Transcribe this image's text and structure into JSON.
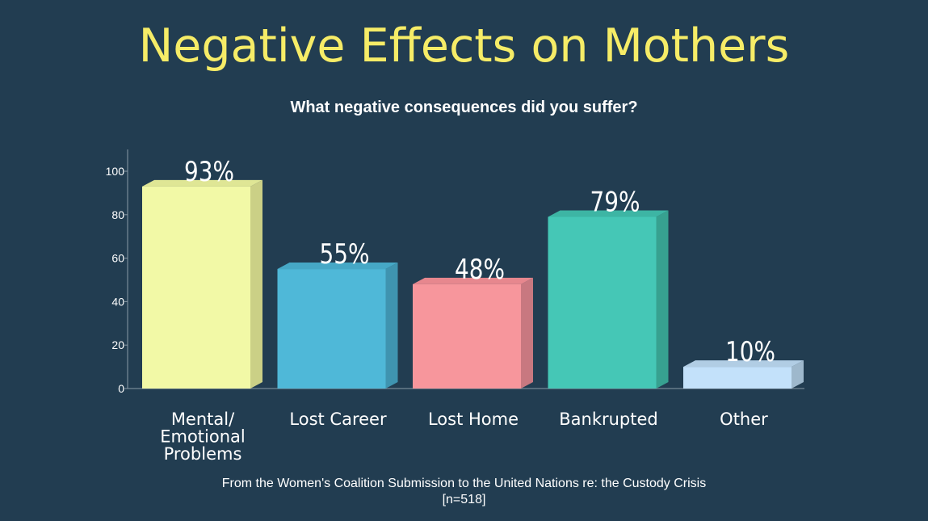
{
  "title": "Negative Effects on Mothers",
  "subtitle": "What negative consequences did you suffer?",
  "source": {
    "line1": "From the Women's Coalition Submission to the United Nations re: the Custody Crisis",
    "line2": "[n=518]"
  },
  "chart_data": {
    "type": "bar",
    "categories": [
      [
        "Mental/",
        "Emotional",
        "Problems"
      ],
      [
        "Lost Career"
      ],
      [
        "Lost Home"
      ],
      [
        "Bankrupted"
      ],
      [
        "Other"
      ]
    ],
    "values": [
      93,
      55,
      48,
      79,
      10
    ],
    "data_labels": [
      "93%",
      "55%",
      "48%",
      "79%",
      "10%"
    ],
    "colors": [
      "#f2f9a6",
      "#4fb8d8",
      "#f7969c",
      "#45c7b6",
      "#c3e1fa"
    ],
    "side_colors": [
      "#cbd086",
      "#3f94b0",
      "#c87880",
      "#37a190",
      "#9eb8cc"
    ],
    "top_colors": [
      "#dfe695",
      "#46a8c6",
      "#e7878e",
      "#3db5a4",
      "#b1cde4"
    ],
    "yticks": [
      0,
      20,
      40,
      60,
      80,
      100
    ],
    "ylim": [
      0,
      110
    ],
    "grid": false,
    "legend": "none"
  }
}
